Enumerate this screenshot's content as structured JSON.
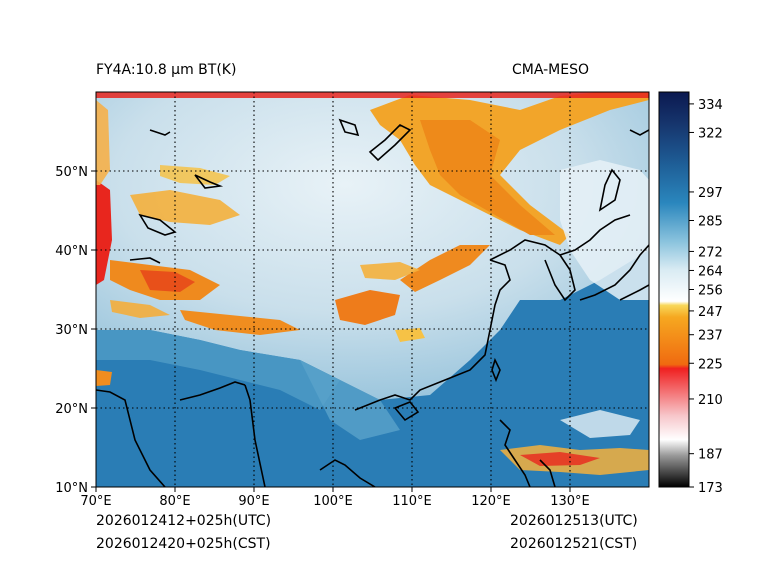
{
  "header": {
    "left_title": "FY4A:10.8 µm BT(K)",
    "right_title": "CMA-MESO"
  },
  "footer": {
    "utc_left": "2026012412+025h(UTC)",
    "cst_left": "2026012420+025h(CST)",
    "utc_right": "2026012513(UTC)",
    "cst_right": "2026012521(CST)"
  },
  "map": {
    "lon_ticks": [
      "70°E",
      "80°E",
      "90°E",
      "100°E",
      "110°E",
      "120°E",
      "130°E"
    ],
    "lat_ticks": [
      "10°N",
      "20°N",
      "30°N",
      "40°N",
      "50°N"
    ],
    "lon_range": [
      70,
      140
    ],
    "lat_range": [
      10,
      60
    ],
    "gridlines": "dotted"
  },
  "colorbar": {
    "labels": [
      "173",
      "187",
      "210",
      "225",
      "237",
      "247",
      "256",
      "264",
      "272",
      "285",
      "297",
      "322",
      "334"
    ],
    "values": [
      173,
      187,
      210,
      225,
      237,
      247,
      256,
      264,
      272,
      285,
      297,
      322,
      334
    ],
    "range": [
      173,
      339
    ]
  },
  "colors": {
    "ocean_blue": "#2a7db5",
    "land_light": "#cfe3ee",
    "cloud_orange": "#f08a1c",
    "cloud_yellow": "#f6c23a",
    "coast": "#000000"
  }
}
